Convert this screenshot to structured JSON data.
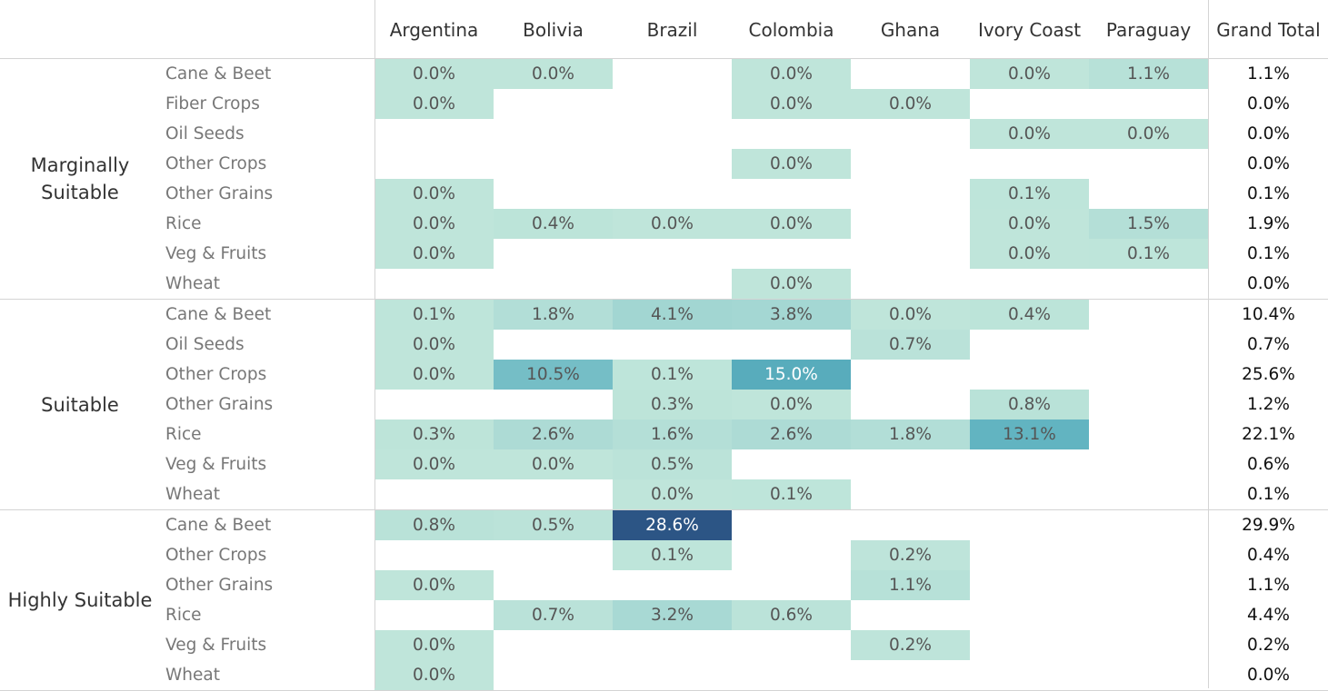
{
  "chart_data": {
    "type": "heatmap",
    "columns": [
      "Argentina",
      "Bolivia",
      "Brazil",
      "Colombia",
      "Ghana",
      "Ivory Coast",
      "Paraguay"
    ],
    "grand_total_label": "Grand Total",
    "color_scale": {
      "min": "#bfe5da",
      "mid": "#5ab0bf",
      "max": "#2c5585"
    },
    "groups": [
      {
        "name": "Marginally Suitable",
        "rows": [
          {
            "crop": "Cane & Beet",
            "values": [
              0.0,
              0.0,
              null,
              0.0,
              null,
              0.0,
              1.1
            ],
            "total": "1.1%"
          },
          {
            "crop": "Fiber Crops",
            "values": [
              0.0,
              null,
              null,
              0.0,
              0.0,
              null,
              null
            ],
            "total": "0.0%"
          },
          {
            "crop": "Oil Seeds",
            "values": [
              null,
              null,
              null,
              null,
              null,
              0.0,
              0.0
            ],
            "total": "0.0%"
          },
          {
            "crop": "Other Crops",
            "values": [
              null,
              null,
              null,
              0.0,
              null,
              null,
              null
            ],
            "total": "0.0%"
          },
          {
            "crop": "Other Grains",
            "values": [
              0.0,
              null,
              null,
              null,
              null,
              0.1,
              null
            ],
            "total": "0.1%"
          },
          {
            "crop": "Rice",
            "values": [
              0.0,
              0.4,
              0.0,
              0.0,
              null,
              0.0,
              1.5
            ],
            "total": "1.9%"
          },
          {
            "crop": "Veg & Fruits",
            "values": [
              0.0,
              null,
              null,
              null,
              null,
              0.0,
              0.1
            ],
            "total": "0.1%"
          },
          {
            "crop": "Wheat",
            "values": [
              null,
              null,
              null,
              0.0,
              null,
              null,
              null
            ],
            "total": "0.0%"
          }
        ]
      },
      {
        "name": "Suitable",
        "rows": [
          {
            "crop": "Cane & Beet",
            "values": [
              0.1,
              1.8,
              4.1,
              3.8,
              0.0,
              0.4,
              null
            ],
            "total": "10.4%"
          },
          {
            "crop": "Oil Seeds",
            "values": [
              0.0,
              null,
              null,
              null,
              0.7,
              null,
              null
            ],
            "total": "0.7%"
          },
          {
            "crop": "Other Crops",
            "values": [
              0.0,
              10.5,
              0.1,
              15.0,
              null,
              null,
              null
            ],
            "total": "25.6%"
          },
          {
            "crop": "Other Grains",
            "values": [
              null,
              null,
              0.3,
              0.0,
              null,
              0.8,
              null
            ],
            "total": "1.2%"
          },
          {
            "crop": "Rice",
            "values": [
              0.3,
              2.6,
              1.6,
              2.6,
              1.8,
              13.1,
              null
            ],
            "total": "22.1%"
          },
          {
            "crop": "Veg & Fruits",
            "values": [
              0.0,
              0.0,
              0.5,
              null,
              null,
              null,
              null
            ],
            "total": "0.6%"
          },
          {
            "crop": "Wheat",
            "values": [
              null,
              null,
              0.0,
              0.1,
              null,
              null,
              null
            ],
            "total": "0.1%"
          }
        ]
      },
      {
        "name": "Highly Suitable",
        "rows": [
          {
            "crop": "Cane & Beet",
            "values": [
              0.8,
              0.5,
              28.6,
              null,
              null,
              null,
              null
            ],
            "total": "29.9%"
          },
          {
            "crop": "Other Crops",
            "values": [
              null,
              null,
              0.1,
              null,
              0.2,
              null,
              null
            ],
            "total": "0.4%"
          },
          {
            "crop": "Other Grains",
            "values": [
              0.0,
              null,
              null,
              null,
              1.1,
              null,
              null
            ],
            "total": "1.1%"
          },
          {
            "crop": "Rice",
            "values": [
              null,
              0.7,
              3.2,
              0.6,
              null,
              null,
              null
            ],
            "total": "4.4%"
          },
          {
            "crop": "Veg & Fruits",
            "values": [
              0.0,
              null,
              null,
              null,
              0.2,
              null,
              null
            ],
            "total": "0.2%"
          },
          {
            "crop": "Wheat",
            "values": [
              0.0,
              null,
              null,
              null,
              null,
              null,
              null
            ],
            "total": "0.0%"
          }
        ]
      }
    ]
  }
}
